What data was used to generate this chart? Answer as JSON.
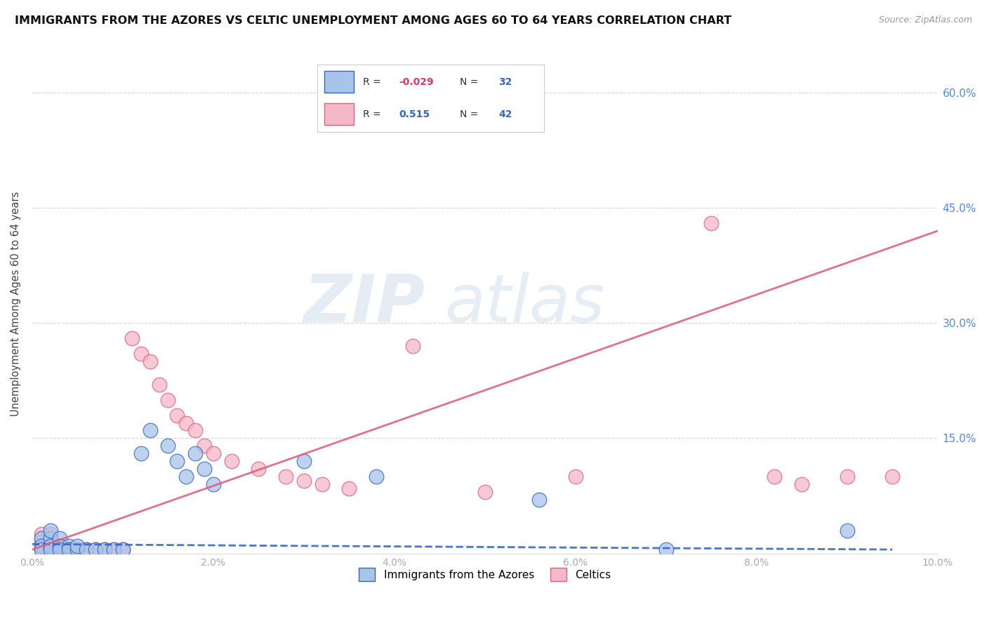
{
  "title": "IMMIGRANTS FROM THE AZORES VS CELTIC UNEMPLOYMENT AMONG AGES 60 TO 64 YEARS CORRELATION CHART",
  "source": "Source: ZipAtlas.com",
  "ylabel": "Unemployment Among Ages 60 to 64 years",
  "xlim": [
    0.0,
    0.1
  ],
  "ylim": [
    0.0,
    0.65
  ],
  "watermark_zip": "ZIP",
  "watermark_atlas": "atlas",
  "legend_azores_R": "-0.029",
  "legend_azores_N": "32",
  "legend_celtics_R": "0.515",
  "legend_celtics_N": "42",
  "azores_color": "#a8c4e8",
  "celtics_color": "#f5b8c8",
  "azores_line_color": "#3366cc",
  "celtics_line_color": "#e06080",
  "background_color": "#ffffff",
  "grid_color": "#cccccc",
  "azores_x": [
    0.001,
    0.001,
    0.001,
    0.002,
    0.002,
    0.002,
    0.002,
    0.003,
    0.003,
    0.003,
    0.004,
    0.004,
    0.005,
    0.005,
    0.006,
    0.007,
    0.008,
    0.009,
    0.01,
    0.012,
    0.013,
    0.015,
    0.016,
    0.017,
    0.018,
    0.019,
    0.02,
    0.03,
    0.038,
    0.056,
    0.07,
    0.09
  ],
  "azores_y": [
    0.02,
    0.01,
    0.005,
    0.02,
    0.01,
    0.005,
    0.03,
    0.02,
    0.01,
    0.005,
    0.01,
    0.005,
    0.005,
    0.01,
    0.005,
    0.005,
    0.005,
    0.005,
    0.005,
    0.13,
    0.16,
    0.14,
    0.12,
    0.1,
    0.13,
    0.11,
    0.09,
    0.12,
    0.1,
    0.07,
    0.005,
    0.03
  ],
  "celtics_x": [
    0.001,
    0.001,
    0.001,
    0.002,
    0.002,
    0.002,
    0.003,
    0.003,
    0.003,
    0.004,
    0.004,
    0.005,
    0.005,
    0.006,
    0.007,
    0.008,
    0.009,
    0.01,
    0.011,
    0.012,
    0.013,
    0.014,
    0.015,
    0.016,
    0.017,
    0.018,
    0.019,
    0.02,
    0.022,
    0.025,
    0.028,
    0.03,
    0.032,
    0.035,
    0.042,
    0.05,
    0.06,
    0.075,
    0.082,
    0.085,
    0.09,
    0.095
  ],
  "celtics_y": [
    0.025,
    0.015,
    0.005,
    0.025,
    0.01,
    0.005,
    0.01,
    0.005,
    0.005,
    0.005,
    0.005,
    0.005,
    0.005,
    0.005,
    0.005,
    0.005,
    0.005,
    0.005,
    0.28,
    0.26,
    0.25,
    0.22,
    0.2,
    0.18,
    0.17,
    0.16,
    0.14,
    0.13,
    0.12,
    0.11,
    0.1,
    0.095,
    0.09,
    0.085,
    0.27,
    0.08,
    0.1,
    0.43,
    0.1,
    0.09,
    0.1,
    0.1
  ],
  "azores_line_x": [
    0.0,
    0.095
  ],
  "azores_line_y": [
    0.012,
    0.005
  ],
  "celtics_line_x": [
    0.0,
    0.1
  ],
  "celtics_line_y": [
    0.005,
    0.42
  ]
}
